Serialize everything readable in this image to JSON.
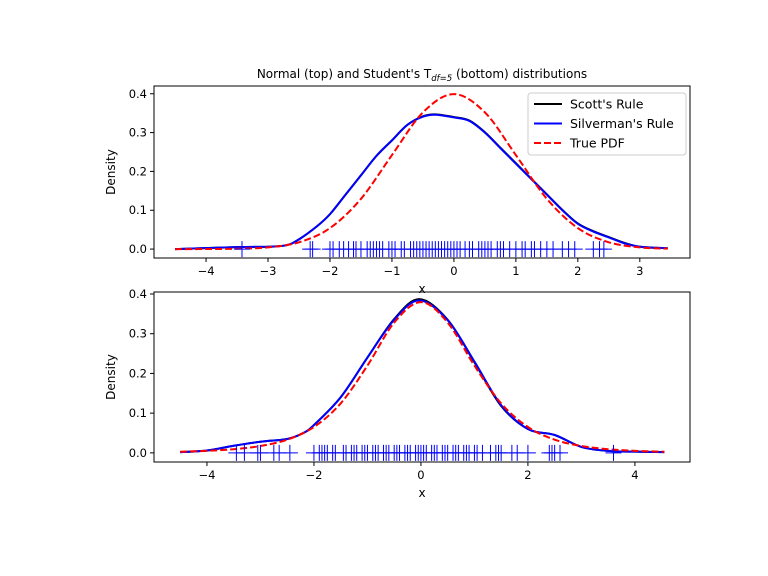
{
  "chart_data": {
    "title_parts": {
      "before": "Normal (top) and Student's T",
      "sub": "df=5",
      "after": " (bottom) distributions"
    },
    "legend": {
      "placement": "upper right",
      "entries": [
        {
          "label": "Scott's Rule",
          "color": "#000000",
          "style": "solid"
        },
        {
          "label": "Silverman's Rule",
          "color": "#0000ff",
          "style": "solid"
        },
        {
          "label": "True PDF",
          "color": "#ff0000",
          "style": "dashed"
        }
      ]
    },
    "charts": [
      {
        "type": "line",
        "xlabel": "x",
        "ylabel": "Density",
        "xlim": [
          -4.84,
          3.81
        ],
        "ylim": [
          -0.023,
          0.42
        ],
        "xticks": [
          -4,
          -3,
          -2,
          -1,
          0,
          1,
          2,
          3
        ],
        "yticks": [
          0.0,
          0.1,
          0.2,
          0.3,
          0.4
        ],
        "series": [
          {
            "name": "Scott's Rule",
            "color": "#000000",
            "x": [
              -4.5,
              -3.5,
              -3,
              -2.7,
              -2.5,
              -2.2,
              -2,
              -1.75,
              -1.5,
              -1.25,
              -1,
              -0.75,
              -0.5,
              -0.3,
              0,
              0.25,
              0.5,
              0.75,
              1,
              1.25,
              1.5,
              1.75,
              2,
              2.25,
              2.5,
              2.75,
              3,
              3.45
            ],
            "y": [
              0.0,
              0.005,
              0.006,
              0.01,
              0.025,
              0.06,
              0.09,
              0.14,
              0.19,
              0.24,
              0.28,
              0.32,
              0.342,
              0.347,
              0.34,
              0.331,
              0.301,
              0.261,
              0.221,
              0.181,
              0.141,
              0.101,
              0.066,
              0.046,
              0.031,
              0.016,
              0.006,
              0.002
            ]
          },
          {
            "name": "Silverman's Rule",
            "color": "#0000ff",
            "x": [
              -4.5,
              -3.5,
              -3,
              -2.7,
              -2.5,
              -2.2,
              -2,
              -1.75,
              -1.5,
              -1.25,
              -1,
              -0.75,
              -0.5,
              -0.3,
              0,
              0.25,
              0.5,
              0.75,
              1,
              1.25,
              1.5,
              1.75,
              2,
              2.25,
              2.5,
              2.75,
              3,
              3.45
            ],
            "y": [
              0.0,
              0.005,
              0.006,
              0.01,
              0.025,
              0.06,
              0.09,
              0.14,
              0.19,
              0.24,
              0.28,
              0.32,
              0.341,
              0.346,
              0.339,
              0.33,
              0.3,
              0.26,
              0.22,
              0.18,
              0.14,
              0.1,
              0.065,
              0.045,
              0.03,
              0.015,
              0.006,
              0.002
            ]
          },
          {
            "name": "True PDF",
            "color": "#ff0000",
            "dashed": true,
            "x": [
              -4.5,
              -4,
              -3.5,
              -3,
              -2.5,
              -2,
              -1.5,
              -1,
              -0.5,
              0,
              0.5,
              1,
              1.5,
              2,
              2.5,
              3,
              3.45
            ],
            "y": [
              0.0,
              0.0001,
              0.0009,
              0.0044,
              0.0175,
              0.054,
              0.1295,
              0.242,
              0.352,
              0.399,
              0.352,
              0.242,
              0.1295,
              0.054,
              0.0175,
              0.0044,
              0.001
            ]
          }
        ],
        "rug": [
          -3.42,
          -2.32,
          -2.28,
          -2.0,
          -1.95,
          -1.85,
          -1.78,
          -1.7,
          -1.62,
          -1.58,
          -1.5,
          -1.4,
          -1.35,
          -1.3,
          -1.25,
          -1.2,
          -1.15,
          -1.05,
          -1.0,
          -0.95,
          -0.85,
          -0.8,
          -0.7,
          -0.65,
          -0.6,
          -0.55,
          -0.5,
          -0.45,
          -0.4,
          -0.35,
          -0.3,
          -0.25,
          -0.2,
          -0.15,
          -0.1,
          -0.05,
          0.0,
          0.05,
          0.1,
          0.18,
          0.25,
          0.3,
          0.4,
          0.45,
          0.5,
          0.55,
          0.6,
          0.7,
          0.75,
          0.8,
          0.9,
          1.0,
          1.1,
          1.15,
          1.25,
          1.3,
          1.4,
          1.5,
          1.6,
          1.75,
          1.85,
          1.95,
          2.25,
          2.35,
          2.42
        ]
      },
      {
        "type": "line",
        "xlabel": "x",
        "ylabel": "Density",
        "xlim": [
          -4.99,
          5.03
        ],
        "ylim": [
          -0.023,
          0.405
        ],
        "xticks": [
          -4,
          -2,
          0,
          2,
          4
        ],
        "yticks": [
          0.0,
          0.1,
          0.2,
          0.3,
          0.4
        ],
        "series": [
          {
            "name": "Scott's Rule",
            "color": "#000000",
            "x": [
              -4.5,
              -4,
              -3.5,
              -3,
              -2.5,
              -2.2,
              -2,
              -1.5,
              -1,
              -0.5,
              -0.03,
              0.5,
              1,
              1.5,
              2,
              2.5,
              3,
              3.5,
              4,
              4.55
            ],
            "y": [
              0.002,
              0.006,
              0.018,
              0.028,
              0.035,
              0.05,
              0.07,
              0.14,
              0.24,
              0.337,
              0.387,
              0.335,
              0.228,
              0.118,
              0.06,
              0.045,
              0.015,
              0.005,
              0.003,
              0.002
            ]
          },
          {
            "name": "Silverman's Rule",
            "color": "#0000ff",
            "x": [
              -4.5,
              -4,
              -3.5,
              -3,
              -2.5,
              -2.2,
              -2,
              -1.5,
              -1,
              -0.5,
              -0.03,
              0.5,
              1,
              1.5,
              2,
              2.5,
              3,
              3.5,
              4,
              4.55
            ],
            "y": [
              0.002,
              0.006,
              0.018,
              0.028,
              0.035,
              0.05,
              0.07,
              0.14,
              0.24,
              0.335,
              0.384,
              0.334,
              0.23,
              0.12,
              0.06,
              0.045,
              0.015,
              0.005,
              0.003,
              0.002
            ]
          },
          {
            "name": "True PDF",
            "color": "#ff0000",
            "dashed": true,
            "x": [
              -4.5,
              -4,
              -3.5,
              -3,
              -2.5,
              -2,
              -1.5,
              -1,
              -0.5,
              0,
              0.5,
              1,
              1.5,
              2,
              2.5,
              3,
              3.5,
              4,
              4.55
            ],
            "y": [
              0.0029,
              0.0051,
              0.0092,
              0.0173,
              0.0332,
              0.0651,
              0.1245,
              0.2197,
              0.3279,
              0.3796,
              0.3279,
              0.2197,
              0.1245,
              0.0651,
              0.0332,
              0.0173,
              0.0092,
              0.0051,
              0.0028
            ]
          }
        ],
        "rug": [
          -3.45,
          -3.3,
          -3.05,
          -3.0,
          -2.75,
          -2.65,
          -2.45,
          -2.0,
          -1.9,
          -1.85,
          -1.8,
          -1.75,
          -1.65,
          -1.6,
          -1.45,
          -1.4,
          -1.3,
          -1.25,
          -1.2,
          -1.1,
          -1.05,
          -1.0,
          -0.9,
          -0.85,
          -0.8,
          -0.7,
          -0.65,
          -0.6,
          -0.5,
          -0.45,
          -0.4,
          -0.3,
          -0.25,
          -0.2,
          -0.1,
          -0.05,
          0.0,
          0.05,
          0.1,
          0.2,
          0.25,
          0.3,
          0.4,
          0.45,
          0.5,
          0.6,
          0.65,
          0.7,
          0.8,
          0.85,
          0.9,
          1.0,
          1.05,
          1.15,
          1.3,
          1.4,
          1.45,
          1.5,
          1.7,
          1.8,
          2.0,
          2.4,
          2.45,
          2.5,
          2.6,
          3.6
        ]
      }
    ]
  }
}
